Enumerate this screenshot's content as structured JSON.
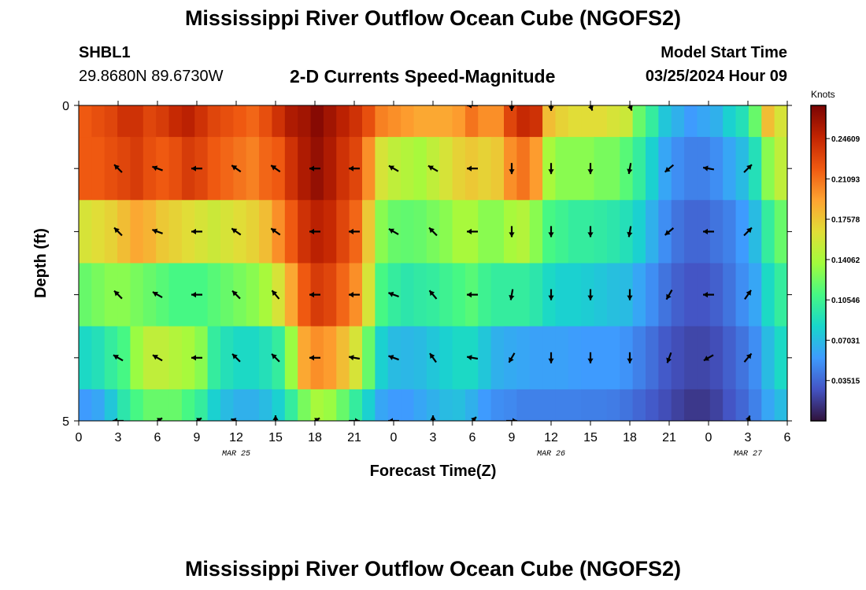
{
  "header": {
    "title": "Mississippi River Outflow Ocean Cube (NGOFS2)",
    "station_id": "SHBL1",
    "station_coords": "29.8680N  89.6730W",
    "subtitle": "2-D Currents Speed-Magnitude",
    "model_start_label": "Model Start Time",
    "model_start_value": "03/25/2024 Hour 09"
  },
  "footer": {
    "title": "Mississippi River Outflow Ocean Cube (NGOFS2)"
  },
  "chart_data": {
    "type": "heatmap",
    "title": "2-D Currents Speed-Magnitude",
    "xlabel": "Forecast Time(Z)",
    "ylabel": "Depth (ft)",
    "x_ticks": [
      "0",
      "3",
      "6",
      "9",
      "12",
      "15",
      "18",
      "21",
      "0",
      "3",
      "6",
      "9",
      "12",
      "15",
      "18",
      "21",
      "0",
      "3",
      "6"
    ],
    "x_range_hours": [
      0,
      54
    ],
    "date_labels": [
      {
        "text": "MAR 25",
        "hour": 12
      },
      {
        "text": "MAR 26",
        "hour": 36
      },
      {
        "text": "MAR 27",
        "hour": 51
      }
    ],
    "y_tick_labels": {
      "top": "0",
      "bottom": "5"
    },
    "ylim": [
      0,
      5
    ],
    "colorbar": {
      "units": "Knots",
      "tick_labels": [
        "0.24609",
        "0.21093",
        "0.17578",
        "0.14062",
        "0.10546",
        "0.07031",
        "0.03515"
      ],
      "tick_values": [
        0.24609,
        0.21093,
        0.17578,
        0.14062,
        0.10546,
        0.07031,
        0.03515
      ],
      "range": [
        0.0,
        0.275
      ],
      "colormap": [
        "#30123b",
        "#4454c4",
        "#3e9bfe",
        "#18d6cb",
        "#46f884",
        "#a2fc3c",
        "#e1dd37",
        "#fea331",
        "#ef5911",
        "#c22402",
        "#7a0403"
      ]
    },
    "layers": [
      {
        "depth_range": [
          0,
          0.5
        ],
        "speeds": [
          0.22,
          0.225,
          0.23,
          0.24,
          0.24,
          0.23,
          0.235,
          0.245,
          0.25,
          0.24,
          0.23,
          0.225,
          0.22,
          0.215,
          0.225,
          0.24,
          0.255,
          0.26,
          0.27,
          0.26,
          0.25,
          0.24,
          0.225,
          0.205,
          0.2,
          0.195,
          0.19,
          0.19,
          0.19,
          0.195,
          0.21,
          0.2,
          0.2,
          0.23,
          0.245,
          0.24,
          0.18,
          0.17,
          0.165,
          0.165,
          0.165,
          0.16,
          0.155,
          0.12,
          0.1,
          0.075,
          0.065,
          0.055,
          0.06,
          0.065,
          0.08,
          0.09,
          0.12,
          0.18,
          0.16
        ]
      },
      {
        "depth_range": [
          0.5,
          1.5
        ],
        "speeds": [
          0.22,
          0.22,
          0.225,
          0.23,
          0.235,
          0.225,
          0.22,
          0.225,
          0.235,
          0.23,
          0.22,
          0.215,
          0.21,
          0.205,
          0.215,
          0.22,
          0.24,
          0.255,
          0.265,
          0.255,
          0.24,
          0.23,
          0.2,
          0.16,
          0.15,
          0.145,
          0.14,
          0.15,
          0.16,
          0.17,
          0.175,
          0.17,
          0.175,
          0.2,
          0.21,
          0.195,
          0.14,
          0.13,
          0.13,
          0.13,
          0.125,
          0.125,
          0.115,
          0.1,
          0.08,
          0.06,
          0.05,
          0.045,
          0.045,
          0.05,
          0.06,
          0.07,
          0.09,
          0.13,
          0.15
        ]
      },
      {
        "depth_range": [
          1.5,
          2.5
        ],
        "speeds": [
          0.16,
          0.165,
          0.17,
          0.18,
          0.19,
          0.185,
          0.175,
          0.17,
          0.165,
          0.16,
          0.155,
          0.16,
          0.165,
          0.17,
          0.18,
          0.2,
          0.22,
          0.24,
          0.25,
          0.245,
          0.23,
          0.215,
          0.175,
          0.13,
          0.12,
          0.118,
          0.12,
          0.125,
          0.13,
          0.14,
          0.14,
          0.13,
          0.13,
          0.14,
          0.145,
          0.13,
          0.11,
          0.105,
          0.1,
          0.1,
          0.098,
          0.095,
          0.09,
          0.08,
          0.065,
          0.05,
          0.04,
          0.035,
          0.035,
          0.04,
          0.045,
          0.055,
          0.07,
          0.1,
          0.12
        ]
      },
      {
        "depth_range": [
          2.5,
          3.5
        ],
        "speeds": [
          0.12,
          0.125,
          0.13,
          0.13,
          0.125,
          0.12,
          0.115,
          0.11,
          0.11,
          0.11,
          0.115,
          0.12,
          0.125,
          0.13,
          0.14,
          0.16,
          0.19,
          0.22,
          0.235,
          0.23,
          0.215,
          0.2,
          0.16,
          0.11,
          0.1,
          0.095,
          0.098,
          0.1,
          0.105,
          0.11,
          0.115,
          0.105,
          0.1,
          0.1,
          0.1,
          0.095,
          0.085,
          0.08,
          0.08,
          0.078,
          0.075,
          0.072,
          0.07,
          0.06,
          0.05,
          0.04,
          0.032,
          0.028,
          0.028,
          0.032,
          0.04,
          0.05,
          0.06,
          0.085,
          0.1
        ]
      },
      {
        "depth_range": [
          3.5,
          4.5
        ],
        "speeds": [
          0.085,
          0.09,
          0.1,
          0.11,
          0.135,
          0.15,
          0.15,
          0.145,
          0.14,
          0.13,
          0.1,
          0.09,
          0.085,
          0.085,
          0.09,
          0.1,
          0.135,
          0.19,
          0.2,
          0.195,
          0.18,
          0.16,
          0.12,
          0.08,
          0.07,
          0.068,
          0.07,
          0.075,
          0.08,
          0.085,
          0.085,
          0.075,
          0.065,
          0.062,
          0.06,
          0.058,
          0.058,
          0.058,
          0.056,
          0.055,
          0.055,
          0.055,
          0.052,
          0.045,
          0.038,
          0.03,
          0.025,
          0.022,
          0.022,
          0.025,
          0.032,
          0.04,
          0.05,
          0.07,
          0.085
        ]
      },
      {
        "depth_range": [
          4.5,
          5.0
        ],
        "speeds": [
          0.055,
          0.06,
          0.075,
          0.095,
          0.11,
          0.12,
          0.12,
          0.12,
          0.11,
          0.1,
          0.08,
          0.07,
          0.065,
          0.065,
          0.07,
          0.08,
          0.1,
          0.125,
          0.14,
          0.135,
          0.12,
          0.1,
          0.08,
          0.06,
          0.055,
          0.055,
          0.06,
          0.065,
          0.07,
          0.072,
          0.065,
          0.055,
          0.05,
          0.048,
          0.045,
          0.045,
          0.045,
          0.045,
          0.045,
          0.044,
          0.044,
          0.043,
          0.04,
          0.035,
          0.03,
          0.025,
          0.02,
          0.016,
          0.016,
          0.02,
          0.028,
          0.035,
          0.045,
          0.06,
          0.07
        ]
      }
    ],
    "arrow_times_hours": [
      3,
      6,
      9,
      12,
      15,
      18,
      21,
      24,
      27,
      30,
      33,
      36,
      39,
      42,
      45,
      48,
      51
    ],
    "arrow_rows": [
      {
        "depth": 0,
        "headings_deg": [
          null,
          null,
          null,
          null,
          null,
          null,
          null,
          null,
          null,
          270,
          180,
          180,
          160,
          160,
          null,
          null,
          null
        ]
      },
      {
        "depth": 1,
        "headings_deg": [
          315,
          290,
          270,
          305,
          305,
          270,
          270,
          300,
          300,
          270,
          180,
          180,
          180,
          190,
          230,
          280,
          45
        ]
      },
      {
        "depth": 2,
        "headings_deg": [
          315,
          290,
          270,
          305,
          305,
          270,
          270,
          300,
          315,
          270,
          180,
          180,
          180,
          190,
          230,
          270,
          45
        ]
      },
      {
        "depth": 3,
        "headings_deg": [
          315,
          300,
          270,
          315,
          320,
          270,
          270,
          290,
          320,
          270,
          190,
          180,
          180,
          180,
          210,
          270,
          35
        ]
      },
      {
        "depth": 4,
        "headings_deg": [
          300,
          300,
          270,
          315,
          315,
          270,
          280,
          290,
          325,
          280,
          210,
          180,
          180,
          180,
          200,
          240,
          40
        ]
      },
      {
        "depth": 5,
        "headings_deg": [
          270,
          60,
          60,
          290,
          0,
          60,
          90,
          270,
          0,
          45,
          90,
          null,
          null,
          null,
          null,
          null,
          20
        ]
      }
    ]
  }
}
